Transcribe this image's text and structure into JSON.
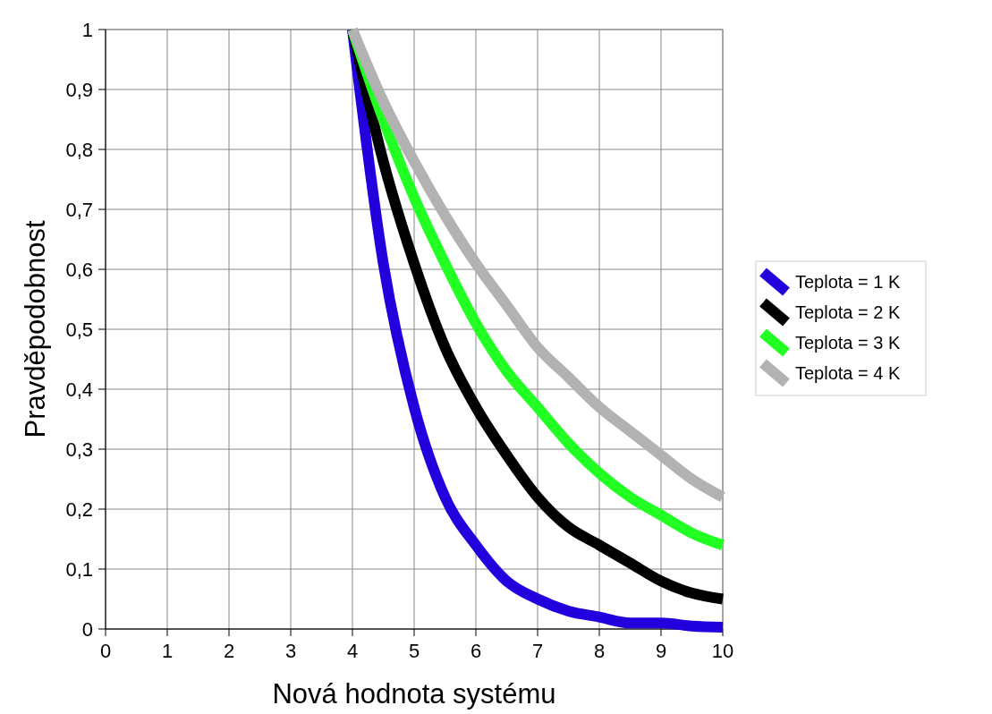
{
  "chart_data": {
    "type": "line",
    "xlabel": "Nová hodnota systému",
    "ylabel": "Pravděpodobnost",
    "x": [
      4,
      4.5,
      5,
      5.5,
      6,
      6.5,
      7,
      7.5,
      8,
      8.5,
      9,
      9.5,
      10
    ],
    "series": [
      {
        "name": "Teplota = 1 K",
        "color": "#2200dd",
        "values": [
          1,
          0.61,
          0.37,
          0.22,
          0.14,
          0.08,
          0.05,
          0.03,
          0.02,
          0.01,
          0.01,
          0.005,
          0.003
        ]
      },
      {
        "name": "Teplota = 2 K",
        "color": "#000000",
        "values": [
          1,
          0.78,
          0.61,
          0.47,
          0.37,
          0.29,
          0.22,
          0.17,
          0.14,
          0.11,
          0.08,
          0.06,
          0.05
        ]
      },
      {
        "name": "Teplota = 3 K",
        "color": "#22ff22",
        "values": [
          1,
          0.85,
          0.72,
          0.61,
          0.51,
          0.43,
          0.37,
          0.31,
          0.26,
          0.22,
          0.19,
          0.16,
          0.14
        ]
      },
      {
        "name": "Teplota = 4 K",
        "color": "#b2b2b2",
        "values": [
          1,
          0.88,
          0.78,
          0.69,
          0.61,
          0.54,
          0.47,
          0.42,
          0.37,
          0.33,
          0.29,
          0.25,
          0.22
        ]
      }
    ],
    "xlim": [
      0,
      10
    ],
    "xticks": [
      0,
      1,
      2,
      3,
      4,
      5,
      6,
      7,
      8,
      9,
      10
    ],
    "ylim": [
      0,
      1
    ],
    "yticks": [
      0,
      {
        "value": 0.1,
        "label": "0,1"
      },
      {
        "value": 0.2,
        "label": "0,2"
      },
      {
        "value": 0.3,
        "label": "0,3"
      },
      {
        "value": 0.4,
        "label": "0,4"
      },
      {
        "value": 0.5,
        "label": "0,5"
      },
      {
        "value": 0.6,
        "label": "0,6"
      },
      {
        "value": 0.7,
        "label": "0,7"
      },
      {
        "value": 0.8,
        "label": "0,8"
      },
      {
        "value": 0.9,
        "label": "0,9"
      },
      1
    ],
    "grid": true,
    "legend": "right",
    "marker": "none",
    "line_style": "solid"
  }
}
